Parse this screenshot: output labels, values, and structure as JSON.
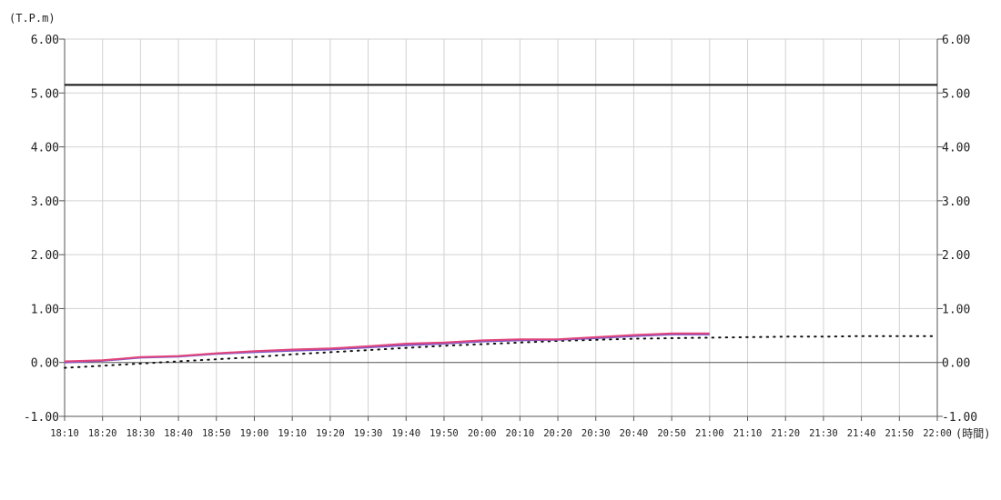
{
  "chart_data": {
    "type": "line",
    "title": "",
    "ylabel": "(T.P.m)",
    "xlabel": "(時間)",
    "ylim": [
      -1.0,
      6.0
    ],
    "yticks": [
      6.0,
      5.0,
      4.0,
      3.0,
      2.0,
      1.0,
      0.0,
      -1.0
    ],
    "ytick_labels": [
      "6.00",
      "5.00",
      "4.00",
      "3.00",
      "2.00",
      "1.00",
      "0.00",
      "-1.00"
    ],
    "x_categories": [
      "18:10",
      "18:20",
      "18:30",
      "18:40",
      "18:50",
      "19:00",
      "19:10",
      "19:20",
      "19:30",
      "19:40",
      "19:50",
      "20:00",
      "20:10",
      "20:20",
      "20:30",
      "20:40",
      "20:50",
      "21:00",
      "21:10",
      "21:20",
      "21:30",
      "21:40",
      "21:50",
      "22:00"
    ],
    "grid": true,
    "reference_lines": [
      {
        "value": 5.15,
        "color": "#111111"
      }
    ],
    "series": [
      {
        "style": "solid",
        "color": "#e0457b",
        "values": [
          0.02,
          0.04,
          0.1,
          0.12,
          0.17,
          0.21,
          0.24,
          0.26,
          0.3,
          0.35,
          0.37,
          0.41,
          0.43,
          0.43,
          0.47,
          0.51,
          0.54,
          0.54
        ]
      },
      {
        "style": "solid",
        "color": "#7d55c7",
        "values": [
          0.0,
          0.03,
          0.09,
          0.11,
          0.16,
          0.19,
          0.22,
          0.24,
          0.28,
          0.32,
          0.35,
          0.39,
          0.41,
          0.42,
          0.45,
          0.49,
          0.52,
          0.52
        ]
      },
      {
        "style": "dotted",
        "color": "#111111",
        "values": [
          -0.1,
          -0.06,
          -0.02,
          0.02,
          0.06,
          0.1,
          0.15,
          0.19,
          0.23,
          0.27,
          0.31,
          0.34,
          0.37,
          0.4,
          0.42,
          0.44,
          0.45,
          0.46,
          0.47,
          0.48,
          0.48,
          0.49,
          0.49,
          0.49
        ]
      }
    ]
  }
}
